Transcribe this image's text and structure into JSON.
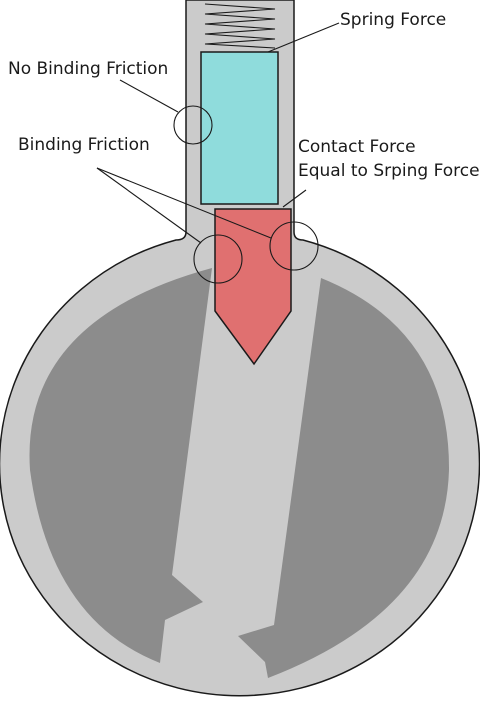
{
  "labels": {
    "spring_force": "Spring Force",
    "no_binding_friction": "No Binding Friction",
    "binding_friction": "Binding Friction",
    "contact_force_line1": "Contact Force",
    "contact_force_line2": "Equal to Srping Force"
  },
  "colors": {
    "body_gray": "#cbcbcb",
    "dark_gray": "#8c8c8c",
    "plunger_cyan": "#8fdcdc",
    "tip_red": "#e07070",
    "outline": "#1a1a1a"
  }
}
